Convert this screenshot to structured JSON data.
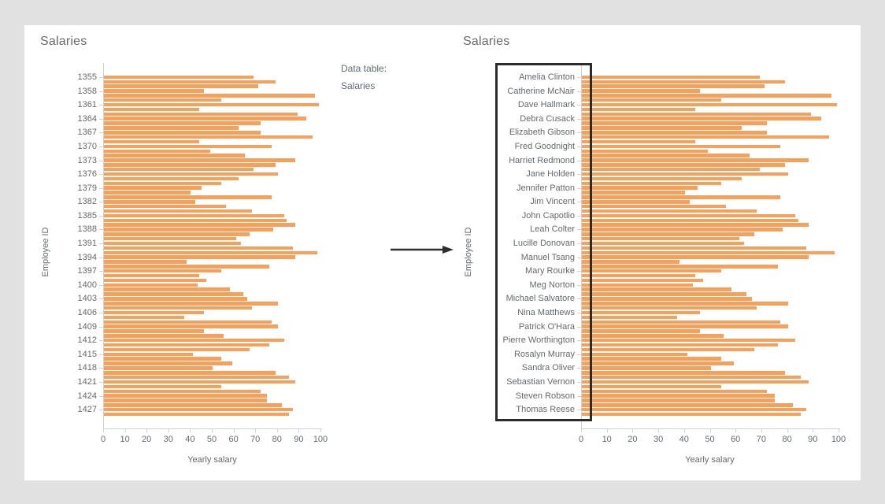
{
  "page": {
    "background": "#e1e1e1",
    "card_background": "#ffffff"
  },
  "colors": {
    "bar": "#f7a05c",
    "axis_line": "#cdd3dd",
    "tick_text": "#65696e",
    "title_text": "#6a6a6a",
    "annotation_text": "#5f6b7c",
    "arrow": "#2e2e2e",
    "highlight_border": "#2b2b2b"
  },
  "annotation": {
    "line1": "Data table:",
    "line2": "Salaries"
  },
  "chart_data": [
    {
      "type": "bar",
      "orientation": "horizontal",
      "title": "Salaries",
      "xlabel": "Yearly salary",
      "ylabel": "Employee ID",
      "xlim": [
        0,
        100
      ],
      "x_ticks": [
        0,
        10,
        20,
        30,
        40,
        50,
        60,
        70,
        80,
        90,
        100
      ],
      "grid": false,
      "legend": false,
      "label_every": 3,
      "tick_labels": [
        "1355",
        "1358",
        "1361",
        "1364",
        "1367",
        "1370",
        "1373",
        "1376",
        "1379",
        "1382",
        "1385",
        "1388",
        "1391",
        "1394",
        "1397",
        "1400",
        "1403",
        "1406",
        "1409",
        "1412",
        "1415",
        "1418",
        "1421",
        "1424",
        "1427"
      ],
      "values": [
        69,
        79,
        71,
        46,
        97,
        54,
        99,
        44,
        89,
        93,
        72,
        62,
        72,
        96,
        44,
        77,
        49,
        65,
        88,
        79,
        69,
        80,
        62,
        54,
        45,
        40,
        77,
        42,
        56,
        68,
        83,
        84,
        88,
        78,
        67,
        61,
        63,
        87,
        98,
        88,
        38,
        76,
        54,
        44,
        47,
        43,
        58,
        64,
        66,
        80,
        68,
        46,
        37,
        77,
        80,
        46,
        55,
        83,
        76,
        67,
        41,
        54,
        59,
        50,
        79,
        85,
        88,
        54,
        72,
        75,
        75,
        82,
        87,
        85
      ]
    },
    {
      "type": "bar",
      "orientation": "horizontal",
      "title": "Salaries",
      "xlabel": "Yearly salary",
      "ylabel": "Employee ID",
      "xlim": [
        0,
        100
      ],
      "x_ticks": [
        0,
        10,
        20,
        30,
        40,
        50,
        60,
        70,
        80,
        90,
        100
      ],
      "grid": false,
      "legend": false,
      "label_every": 3,
      "tick_labels": [
        "Amelia Clinton",
        "Catherine McNair",
        "Dave Hallmark",
        "Debra Cusack",
        "Elizabeth Gibson",
        "Fred Goodnight",
        "Harriet Redmond",
        "Jane Holden",
        "Jennifer Patton",
        "Jim Vincent",
        "John Capotlio",
        "Leah Colter",
        "Lucille Donovan",
        "Manuel Tsang",
        "Mary Rourke",
        "Meg Norton",
        "Michael Salvatore",
        "Nina Matthews",
        "Patrick O'Hara",
        "Pierre Worthington",
        "Rosalyn Murray",
        "Sandra Oliver",
        "Sebastian Vernon",
        "Steven Robson",
        "Thomas Reese"
      ],
      "values": [
        69,
        79,
        71,
        46,
        97,
        54,
        99,
        44,
        89,
        93,
        72,
        62,
        72,
        96,
        44,
        77,
        49,
        65,
        88,
        79,
        69,
        80,
        62,
        54,
        45,
        40,
        77,
        42,
        56,
        68,
        83,
        84,
        88,
        78,
        67,
        61,
        63,
        87,
        98,
        88,
        38,
        76,
        54,
        44,
        47,
        43,
        58,
        64,
        66,
        80,
        68,
        46,
        37,
        77,
        80,
        46,
        55,
        83,
        76,
        67,
        41,
        54,
        59,
        50,
        79,
        85,
        88,
        54,
        72,
        75,
        75,
        82,
        87,
        85
      ]
    }
  ]
}
